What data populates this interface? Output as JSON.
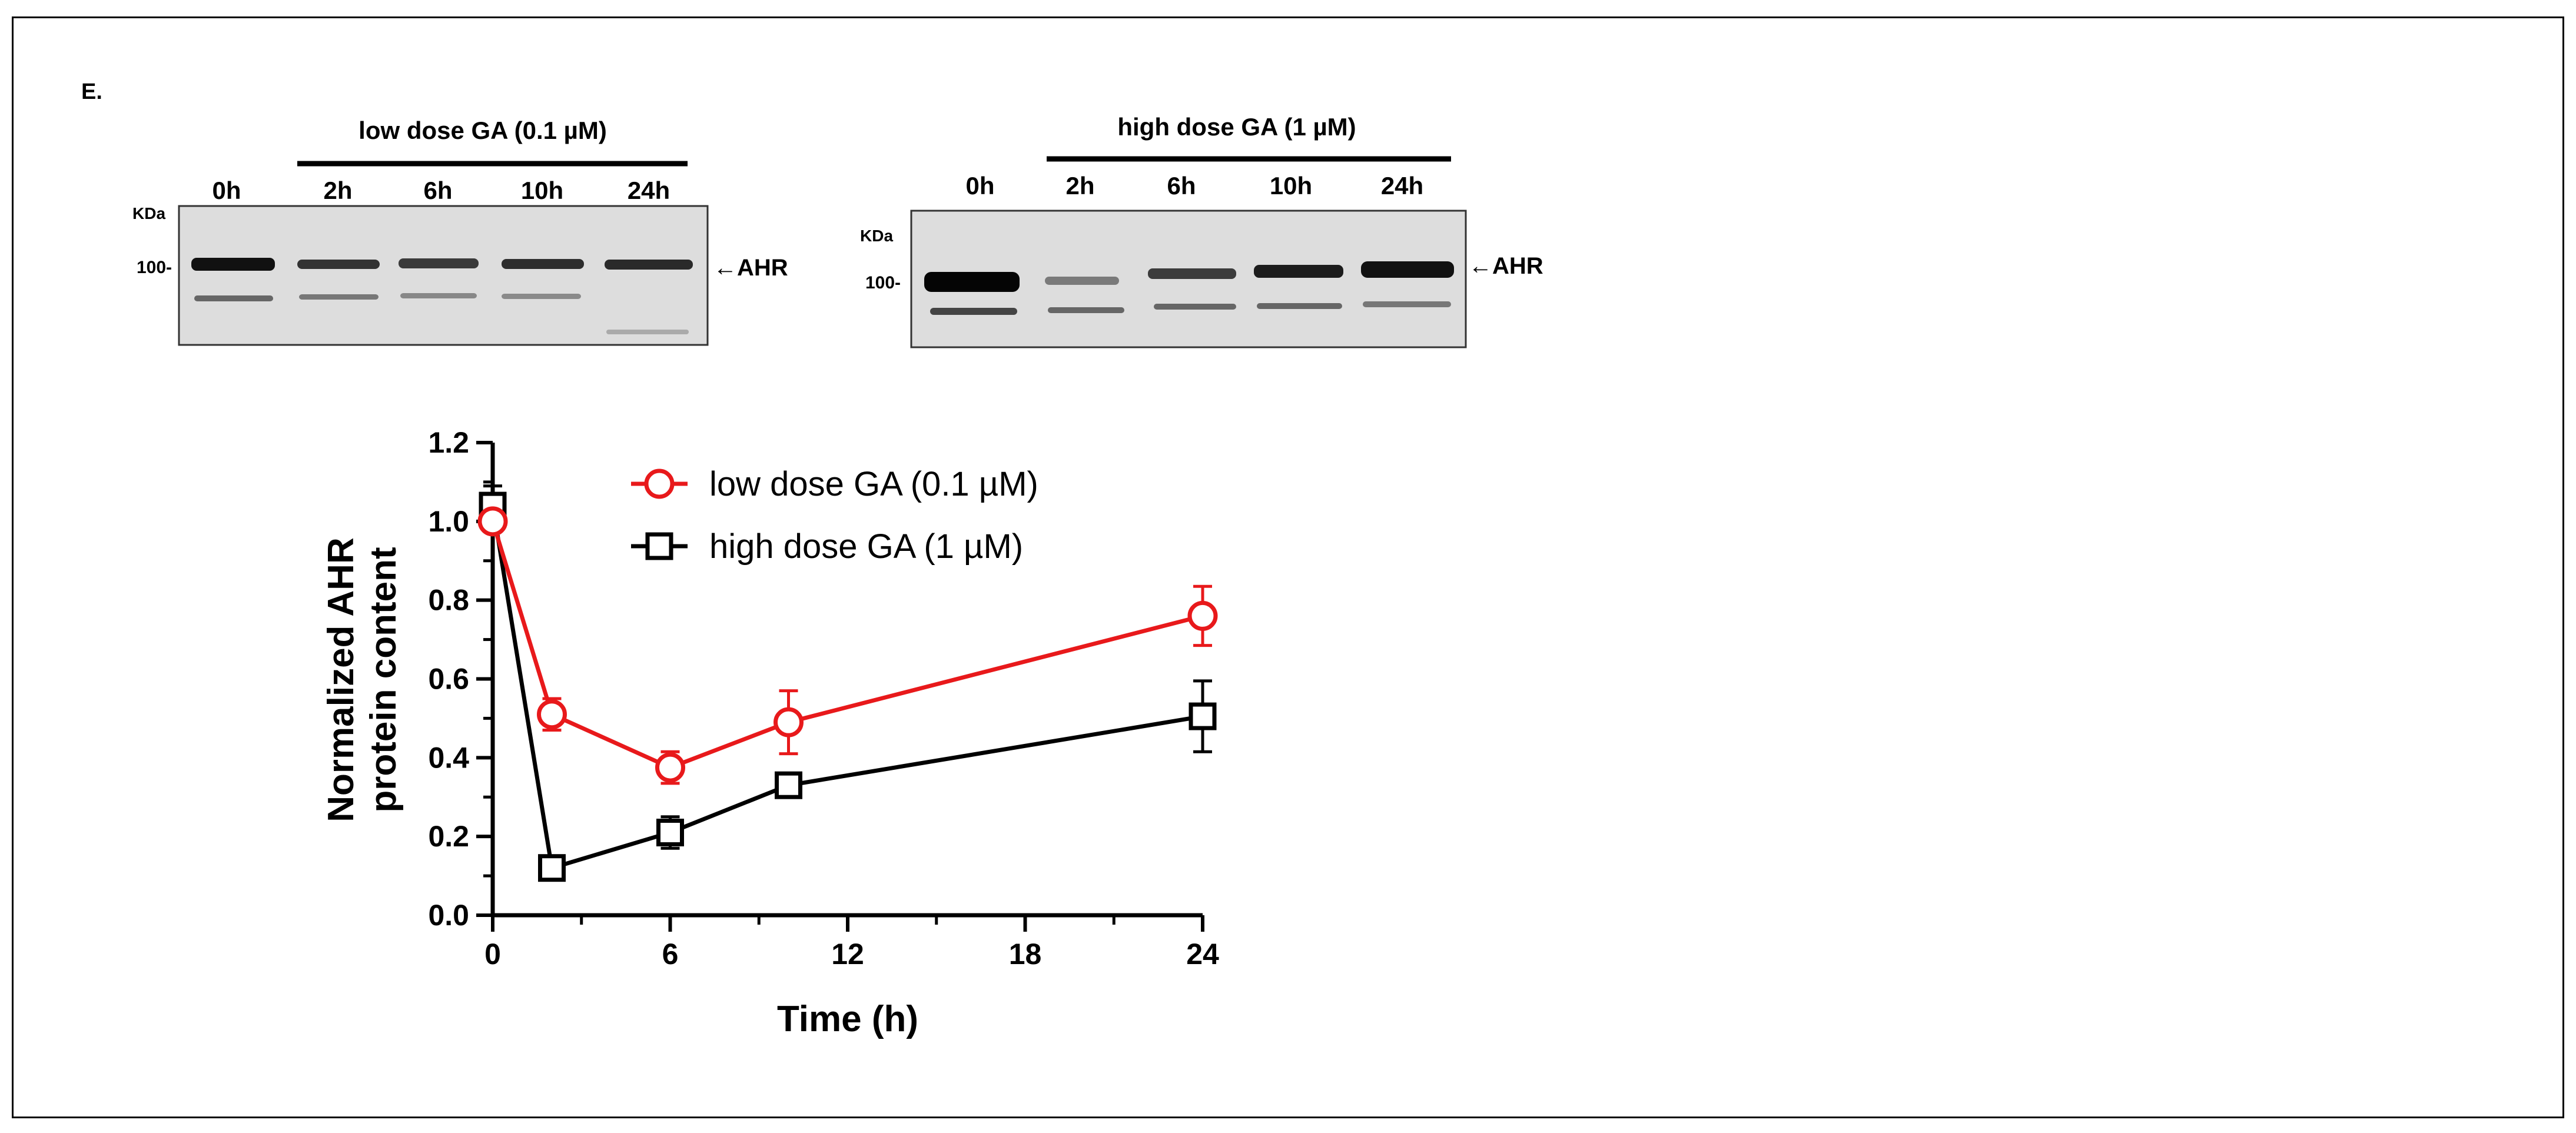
{
  "panel_label": "E.",
  "blots": [
    {
      "header": "low dose GA (0.1 µM)",
      "lanes": [
        "0h",
        "2h",
        "6h",
        "10h",
        "24h"
      ],
      "kda_label": "KDa",
      "marker": "100-",
      "band_label": "←AHR"
    },
    {
      "header": "high dose GA (1 µM)",
      "lanes": [
        "0h",
        "2h",
        "6h",
        "10h",
        "24h"
      ],
      "kda_label": "KDa",
      "marker": "100-",
      "band_label": "←AHR"
    }
  ],
  "chart_data": {
    "type": "line",
    "title": "",
    "xlabel": "Time (h)",
    "ylabel_lines": [
      "Normalized AHR",
      "protein content"
    ],
    "xlim": [
      0,
      24
    ],
    "ylim": [
      0.0,
      1.2
    ],
    "xticks": [
      0,
      6,
      12,
      18,
      24
    ],
    "xtick_labels": [
      "0",
      "6",
      "12",
      "18",
      "24"
    ],
    "yticks": [
      0.0,
      0.2,
      0.4,
      0.6,
      0.8,
      1.0,
      1.2
    ],
    "ytick_labels": [
      "0.0",
      "0.2",
      "0.4",
      "0.6",
      "0.8",
      "1.0",
      "1.2"
    ],
    "grid": false,
    "legend_position": "top-center",
    "series": [
      {
        "name": "low dose GA (0.1 µM)",
        "color": "#e8191b",
        "marker": "circle",
        "x": [
          0,
          2,
          6,
          10,
          24
        ],
        "y": [
          1.0,
          0.51,
          0.375,
          0.49,
          0.76
        ],
        "err": [
          0.02,
          0.04,
          0.04,
          0.08,
          0.075
        ]
      },
      {
        "name": "high dose GA (1 µM)",
        "color": "#000000",
        "marker": "square",
        "x": [
          0,
          2,
          6,
          10,
          24
        ],
        "y": [
          1.04,
          0.12,
          0.21,
          0.33,
          0.505
        ],
        "err": [
          0.05,
          0.015,
          0.04,
          0.03,
          0.09
        ]
      }
    ]
  }
}
